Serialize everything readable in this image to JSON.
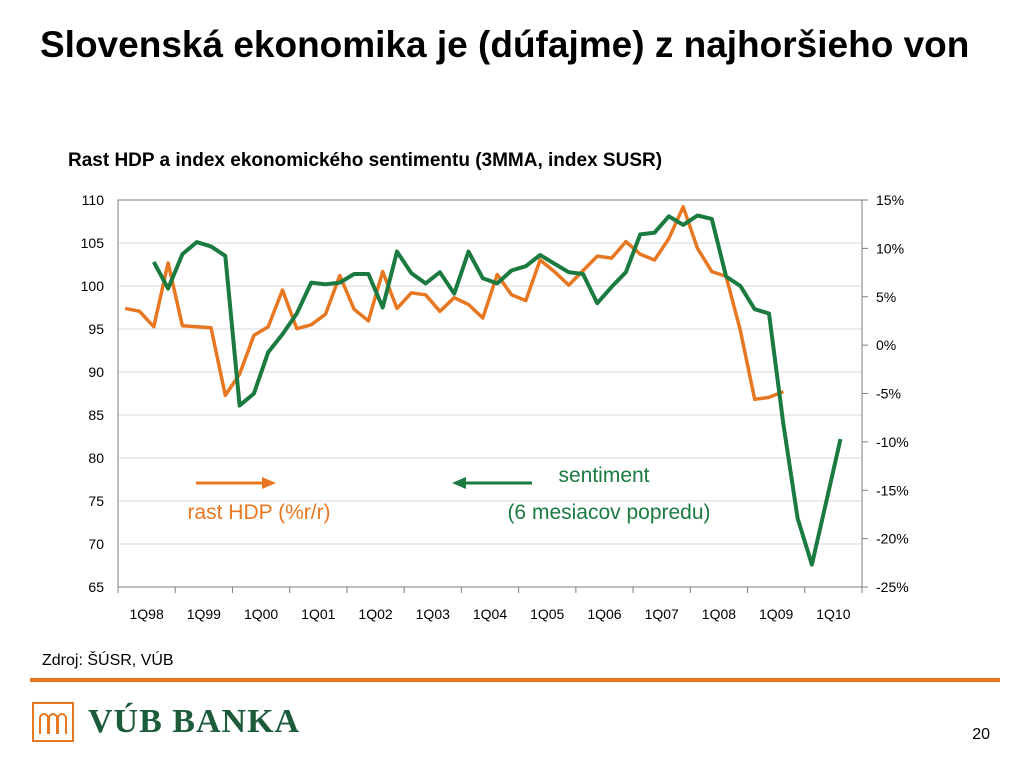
{
  "slide": {
    "title": "Slovenská ekonomika je (dúfajme) z najhoršieho von",
    "source": "Zdroj: ŠÚSR, VÚB",
    "logo_text": "VÚB BANKA",
    "page_number": "20"
  },
  "colors": {
    "hdp": "#e87722",
    "sentiment": "#1a7a40",
    "grid": "#d9d9d9",
    "footer": "#e87722"
  },
  "chart_data": {
    "type": "line",
    "title": "Rast HDP a index ekonomického sentimentu (3MMA, index SUSR)",
    "x_ticks": [
      "1Q98",
      "1Q99",
      "1Q00",
      "1Q01",
      "1Q02",
      "1Q03",
      "1Q04",
      "1Q05",
      "1Q06",
      "1Q07",
      "1Q08",
      "1Q09",
      "1Q10"
    ],
    "y_left": {
      "range": [
        65,
        110
      ],
      "ticks": [
        "110",
        "105",
        "100",
        "95",
        "90",
        "85",
        "80",
        "75",
        "70",
        "65"
      ]
    },
    "y_right": {
      "range": [
        -25,
        15
      ],
      "ticks": [
        "15%",
        "10%",
        "5%",
        "0%",
        "-5%",
        "-10%",
        "-15%",
        "-20%",
        "-25%"
      ]
    },
    "grid": true,
    "series": [
      {
        "name": "rast HDP (%r/r)",
        "axis": "right",
        "quarter_start": 0,
        "values": [
          3.8,
          3.5,
          1.9,
          8.5,
          2.0,
          1.9,
          1.8,
          -5.2,
          -3.0,
          1.0,
          1.9,
          5.7,
          1.7,
          2.1,
          3.2,
          7.2,
          3.7,
          2.5,
          7.6,
          3.8,
          5.4,
          5.2,
          3.5,
          4.9,
          4.2,
          2.8,
          7.3,
          5.2,
          4.6,
          8.8,
          7.6,
          6.2,
          7.7,
          9.2,
          9.0,
          10.7,
          9.4,
          8.8,
          11.0,
          14.3,
          10.0,
          7.6,
          7.1,
          1.5,
          -5.6,
          -5.4,
          -4.8
        ]
      },
      {
        "name": "sentiment (6 mesiacov popredu)",
        "axis": "left",
        "quarter_start": 2,
        "values": [
          102.8,
          99.7,
          103.7,
          105.1,
          104.6,
          103.5,
          86.1,
          87.5,
          92.3,
          94.4,
          96.8,
          100.4,
          100.2,
          100.4,
          101.4,
          101.4,
          97.5,
          104.0,
          101.5,
          100.3,
          101.6,
          99.1,
          104.0,
          100.9,
          100.3,
          101.8,
          102.3,
          103.6,
          102.6,
          101.6,
          101.4,
          98.0,
          99.9,
          101.6,
          106.0,
          106.2,
          108.1,
          107.1,
          108.2,
          107.8,
          101.1,
          100.0,
          97.3,
          96.8,
          84.0,
          73.0,
          67.6,
          74.9,
          82.2
        ]
      }
    ],
    "annotations": [
      {
        "text": "rast HDP (%r/r)",
        "arrow": "right",
        "series": 0
      },
      {
        "text_line1": "sentiment",
        "text_line2": "(6 mesiacov popredu)",
        "arrow": "left",
        "series": 1
      }
    ]
  }
}
